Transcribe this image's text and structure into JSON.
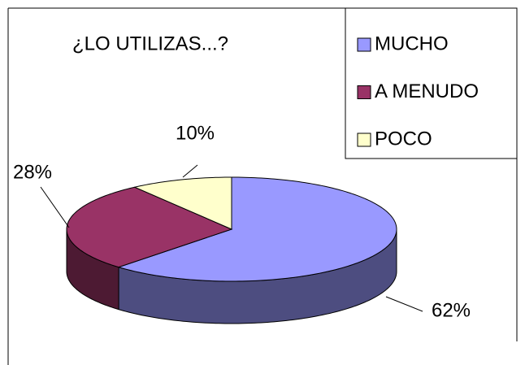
{
  "chart_data": {
    "type": "pie",
    "title": "¿LO UTILIZAS...?",
    "categories": [
      "MUCHO",
      "A MENUDO",
      "POCO"
    ],
    "values": [
      62,
      28,
      10
    ],
    "value_labels": [
      "62%",
      "28%",
      "10%"
    ],
    "colors": [
      "#9999ff",
      "#993366",
      "#ffffcc"
    ],
    "legend": "right"
  }
}
